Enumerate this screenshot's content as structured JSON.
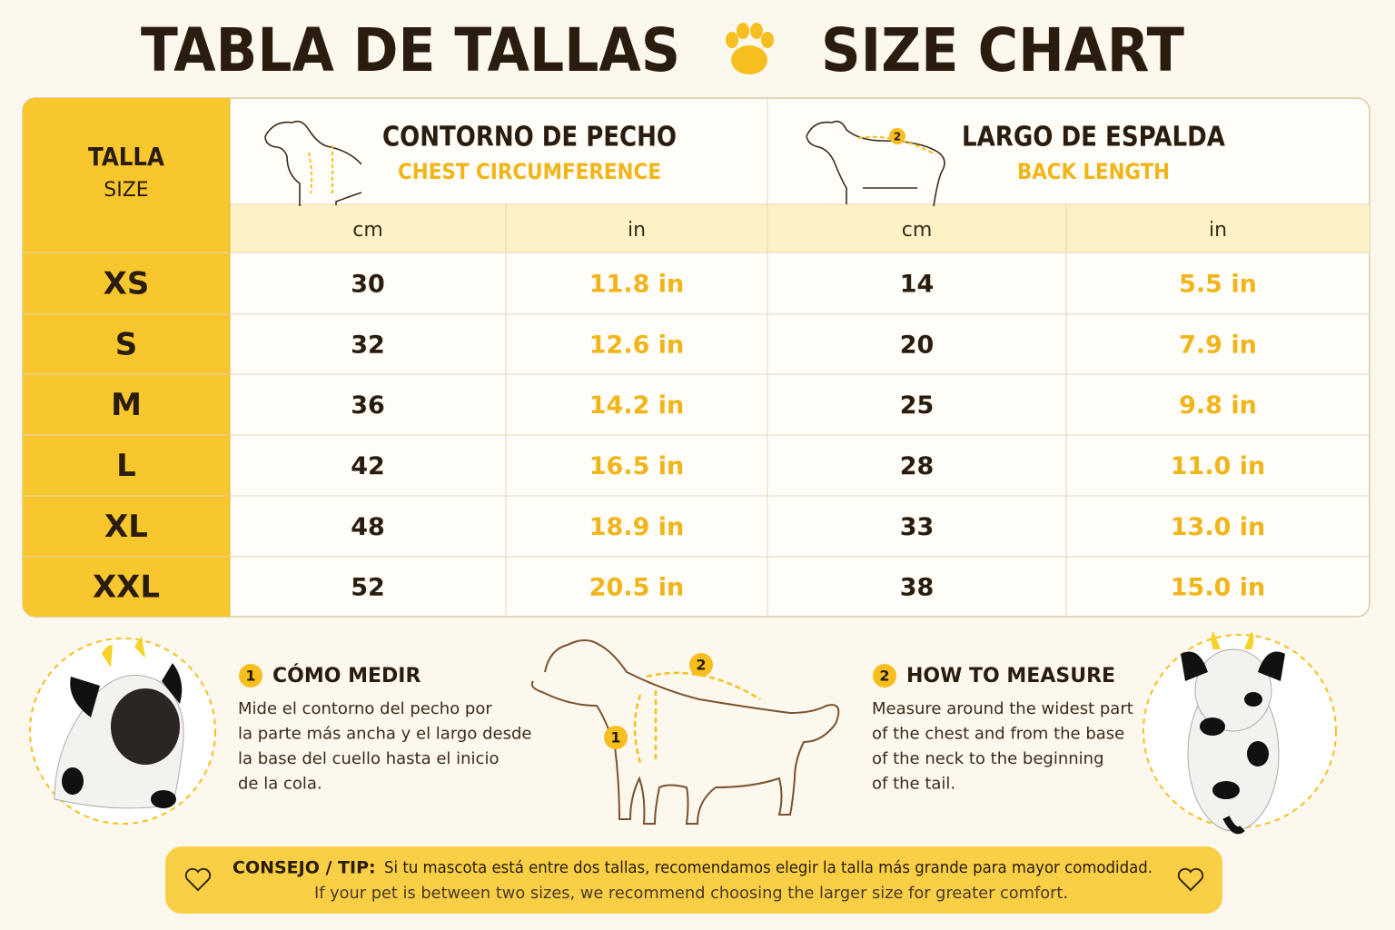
{
  "title": {
    "left": "TABLA DE TALLAS",
    "right": "SIZE CHART"
  },
  "table": {
    "size_header": {
      "es": "TALLA",
      "en": "SIZE"
    },
    "columns": [
      {
        "es": "CONTORNO DE PECHO",
        "en": "CHEST CIRCUMFERENCE"
      },
      {
        "es": "LARGO DE ESPALDA",
        "en": "BACK LENGTH",
        "badge": "2"
      }
    ],
    "units": [
      "cm",
      "in",
      "cm",
      "in"
    ],
    "rows": [
      [
        "XS",
        30,
        "11.8 in",
        14,
        "5.5 in"
      ],
      [
        "S",
        32,
        "12.6 in",
        20,
        "7.9 in"
      ],
      [
        "M",
        36,
        "14.2 in",
        25,
        "9.8 in"
      ],
      [
        "L",
        42,
        "16.5 in",
        28,
        "11.0 in"
      ],
      [
        "XL",
        48,
        "18.9 in",
        33,
        "13.0 in"
      ],
      [
        "XXL",
        52,
        "20.5 in",
        38,
        "15.0 in"
      ]
    ]
  },
  "how_to": [
    {
      "badge": "1",
      "heading": "CÓMO MEDIR",
      "lines": [
        "Mide el contorno del pecho por",
        "la parte más ancha y el largo desde",
        "la base del cuello hasta el inicio",
        "de la cola."
      ]
    },
    {
      "badge": "2",
      "heading": "HOW TO MEASURE",
      "lines": [
        "Measure around the widest part",
        "of the chest and from the base",
        "of the neck to the beginning",
        "of the tail."
      ]
    }
  ],
  "diagram_labels": [
    "1",
    "2"
  ],
  "tip": {
    "label": "CONSEJO / TIP:",
    "es": "Si tu mascota está entre dos tallas, recomendamos elegir la talla más grande para mayor comodidad.",
    "en": "If your pet is between two sizes, we recommend choosing the larger size  for greater comfort."
  }
}
